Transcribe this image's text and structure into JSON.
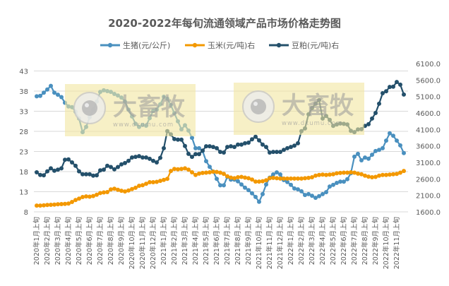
{
  "chart_data": {
    "type": "line",
    "title": "2020-2022年每旬流通领域产品市场价格走势图",
    "legend_position": "top",
    "grid": true,
    "x_tick_labels": [
      "2020年1月上旬",
      "2020年2月上旬",
      "2020年3月上旬",
      "2020年4月上旬",
      "2020年5月上旬",
      "2020年6月上旬",
      "2020年7月上旬",
      "2020年8月上旬",
      "2020年9月上旬",
      "2020年10月上旬",
      "2020年11月上旬",
      "2020年12月上旬",
      "2021年1月上旬",
      "2021年2月上旬",
      "2021年3月上旬",
      "2021年4月上旬",
      "2021年5月上旬",
      "2021年6月上旬",
      "2021年7月上旬",
      "2021年8月上旬",
      "2021年9月上旬",
      "2021年10月上旬",
      "2021年11月上旬",
      "2021年12月上旬",
      "2022年1月上旬",
      "2022年2月上旬",
      "2022年3月上旬",
      "2022年4月上旬",
      "2022年5月上旬",
      "2022年6月上旬",
      "2022年7月上旬",
      "2022年8月上旬",
      "2022年9月上旬",
      "2022年10月上旬",
      "2022年11月上旬"
    ],
    "y_left": {
      "ticks": [
        "8",
        "13",
        "18",
        "23",
        "28",
        "33",
        "38",
        "43"
      ],
      "min": 8,
      "max": 43
    },
    "y_right": {
      "ticks": [
        "1600.0",
        "2100.0",
        "2600.0",
        "3100.0",
        "3600.0",
        "4100.0",
        "4600.0",
        "5100.0",
        "5600.0",
        "6100.0"
      ],
      "min": 1600,
      "max": 6100
    },
    "series": [
      {
        "name": "生猪(元/公斤)",
        "axis": "left",
        "color": "#4a90bf",
        "values": [
          36.7,
          36.8,
          37.6,
          38.4,
          39.3,
          37.6,
          37.1,
          36.5,
          35.1,
          34.2,
          34.0,
          32.9,
          31.2,
          27.8,
          29.1,
          31.5,
          33.4,
          35.4,
          37.8,
          38.2,
          38.0,
          37.8,
          37.3,
          36.9,
          36.4,
          35.4,
          33.4,
          31.7,
          29.9,
          29.1,
          29.6,
          29.4,
          31.3,
          33.1,
          33.4,
          34.7,
          36.6,
          36.1,
          34.5,
          32.5,
          30.5,
          28.5,
          29.5,
          28.2,
          26.4,
          23.8,
          23.8,
          23.1,
          20.6,
          19.2,
          18.0,
          16.2,
          14.6,
          14.6,
          16.7,
          16.0,
          16.0,
          15.6,
          14.8,
          14.0,
          13.4,
          12.6,
          11.7,
          10.5,
          12.4,
          14.8,
          16.5,
          17.3,
          17.8,
          17.3,
          15.9,
          15.4,
          14.7,
          13.8,
          13.6,
          13.1,
          12.2,
          12.4,
          12.0,
          11.5,
          11.9,
          12.4,
          12.9,
          14.3,
          14.7,
          15.2,
          15.5,
          15.5,
          16.1,
          17.6,
          21.7,
          22.4,
          20.8,
          21.5,
          21.2,
          22.2,
          23.1,
          23.4,
          23.8,
          25.7,
          27.5,
          26.9,
          25.7,
          24.5,
          22.6
        ]
      },
      {
        "name": "玉米(元/吨)右",
        "axis": "right",
        "color": "#f39800",
        "values": [
          1790,
          1790,
          1800,
          1810,
          1815,
          1820,
          1830,
          1835,
          1840,
          1850,
          1900,
          1960,
          2000,
          2050,
          2070,
          2060,
          2080,
          2120,
          2170,
          2190,
          2200,
          2280,
          2300,
          2270,
          2240,
          2220,
          2250,
          2290,
          2330,
          2390,
          2410,
          2450,
          2500,
          2500,
          2510,
          2540,
          2570,
          2600,
          2840,
          2900,
          2890,
          2900,
          2920,
          2880,
          2800,
          2720,
          2760,
          2780,
          2790,
          2800,
          2820,
          2810,
          2790,
          2750,
          2680,
          2640,
          2620,
          2650,
          2660,
          2640,
          2620,
          2580,
          2520,
          2520,
          2530,
          2560,
          2620,
          2630,
          2620,
          2610,
          2610,
          2610,
          2610,
          2610,
          2610,
          2610,
          2620,
          2630,
          2650,
          2700,
          2720,
          2730,
          2720,
          2730,
          2740,
          2770,
          2780,
          2790,
          2790,
          2800,
          2790,
          2760,
          2740,
          2700,
          2670,
          2650,
          2660,
          2700,
          2720,
          2720,
          2730,
          2740,
          2750,
          2790,
          2840
        ]
      },
      {
        "name": "豆粕(元/吨)右",
        "axis": "right",
        "color": "#24506b",
        "values": [
          2800,
          2720,
          2710,
          2830,
          2920,
          2850,
          2880,
          2920,
          3180,
          3190,
          3100,
          3000,
          2830,
          2740,
          2740,
          2740,
          2700,
          2710,
          2860,
          2880,
          3000,
          2960,
          2890,
          2960,
          3040,
          3080,
          3150,
          3250,
          3270,
          3290,
          3250,
          3250,
          3210,
          3150,
          3100,
          3240,
          3530,
          4050,
          3950,
          3810,
          3790,
          3790,
          3600,
          3360,
          3270,
          3350,
          3350,
          3460,
          3590,
          3590,
          3570,
          3530,
          3420,
          3400,
          3570,
          3590,
          3570,
          3640,
          3640,
          3680,
          3700,
          3800,
          3880,
          3770,
          3640,
          3570,
          3400,
          3420,
          3420,
          3420,
          3480,
          3530,
          3570,
          3610,
          3680,
          4050,
          4130,
          4560,
          4750,
          4880,
          4990,
          4430,
          4510,
          4390,
          4210,
          4250,
          4280,
          4270,
          4250,
          4060,
          4020,
          4100,
          4110,
          4210,
          4260,
          4430,
          4600,
          4880,
          5200,
          5260,
          5390,
          5400,
          5540,
          5460,
          5160
        ]
      }
    ]
  },
  "watermark": {
    "brand": "大畜牧",
    "url": "www.dxumu.com",
    "fill": "#f2e6a0"
  }
}
